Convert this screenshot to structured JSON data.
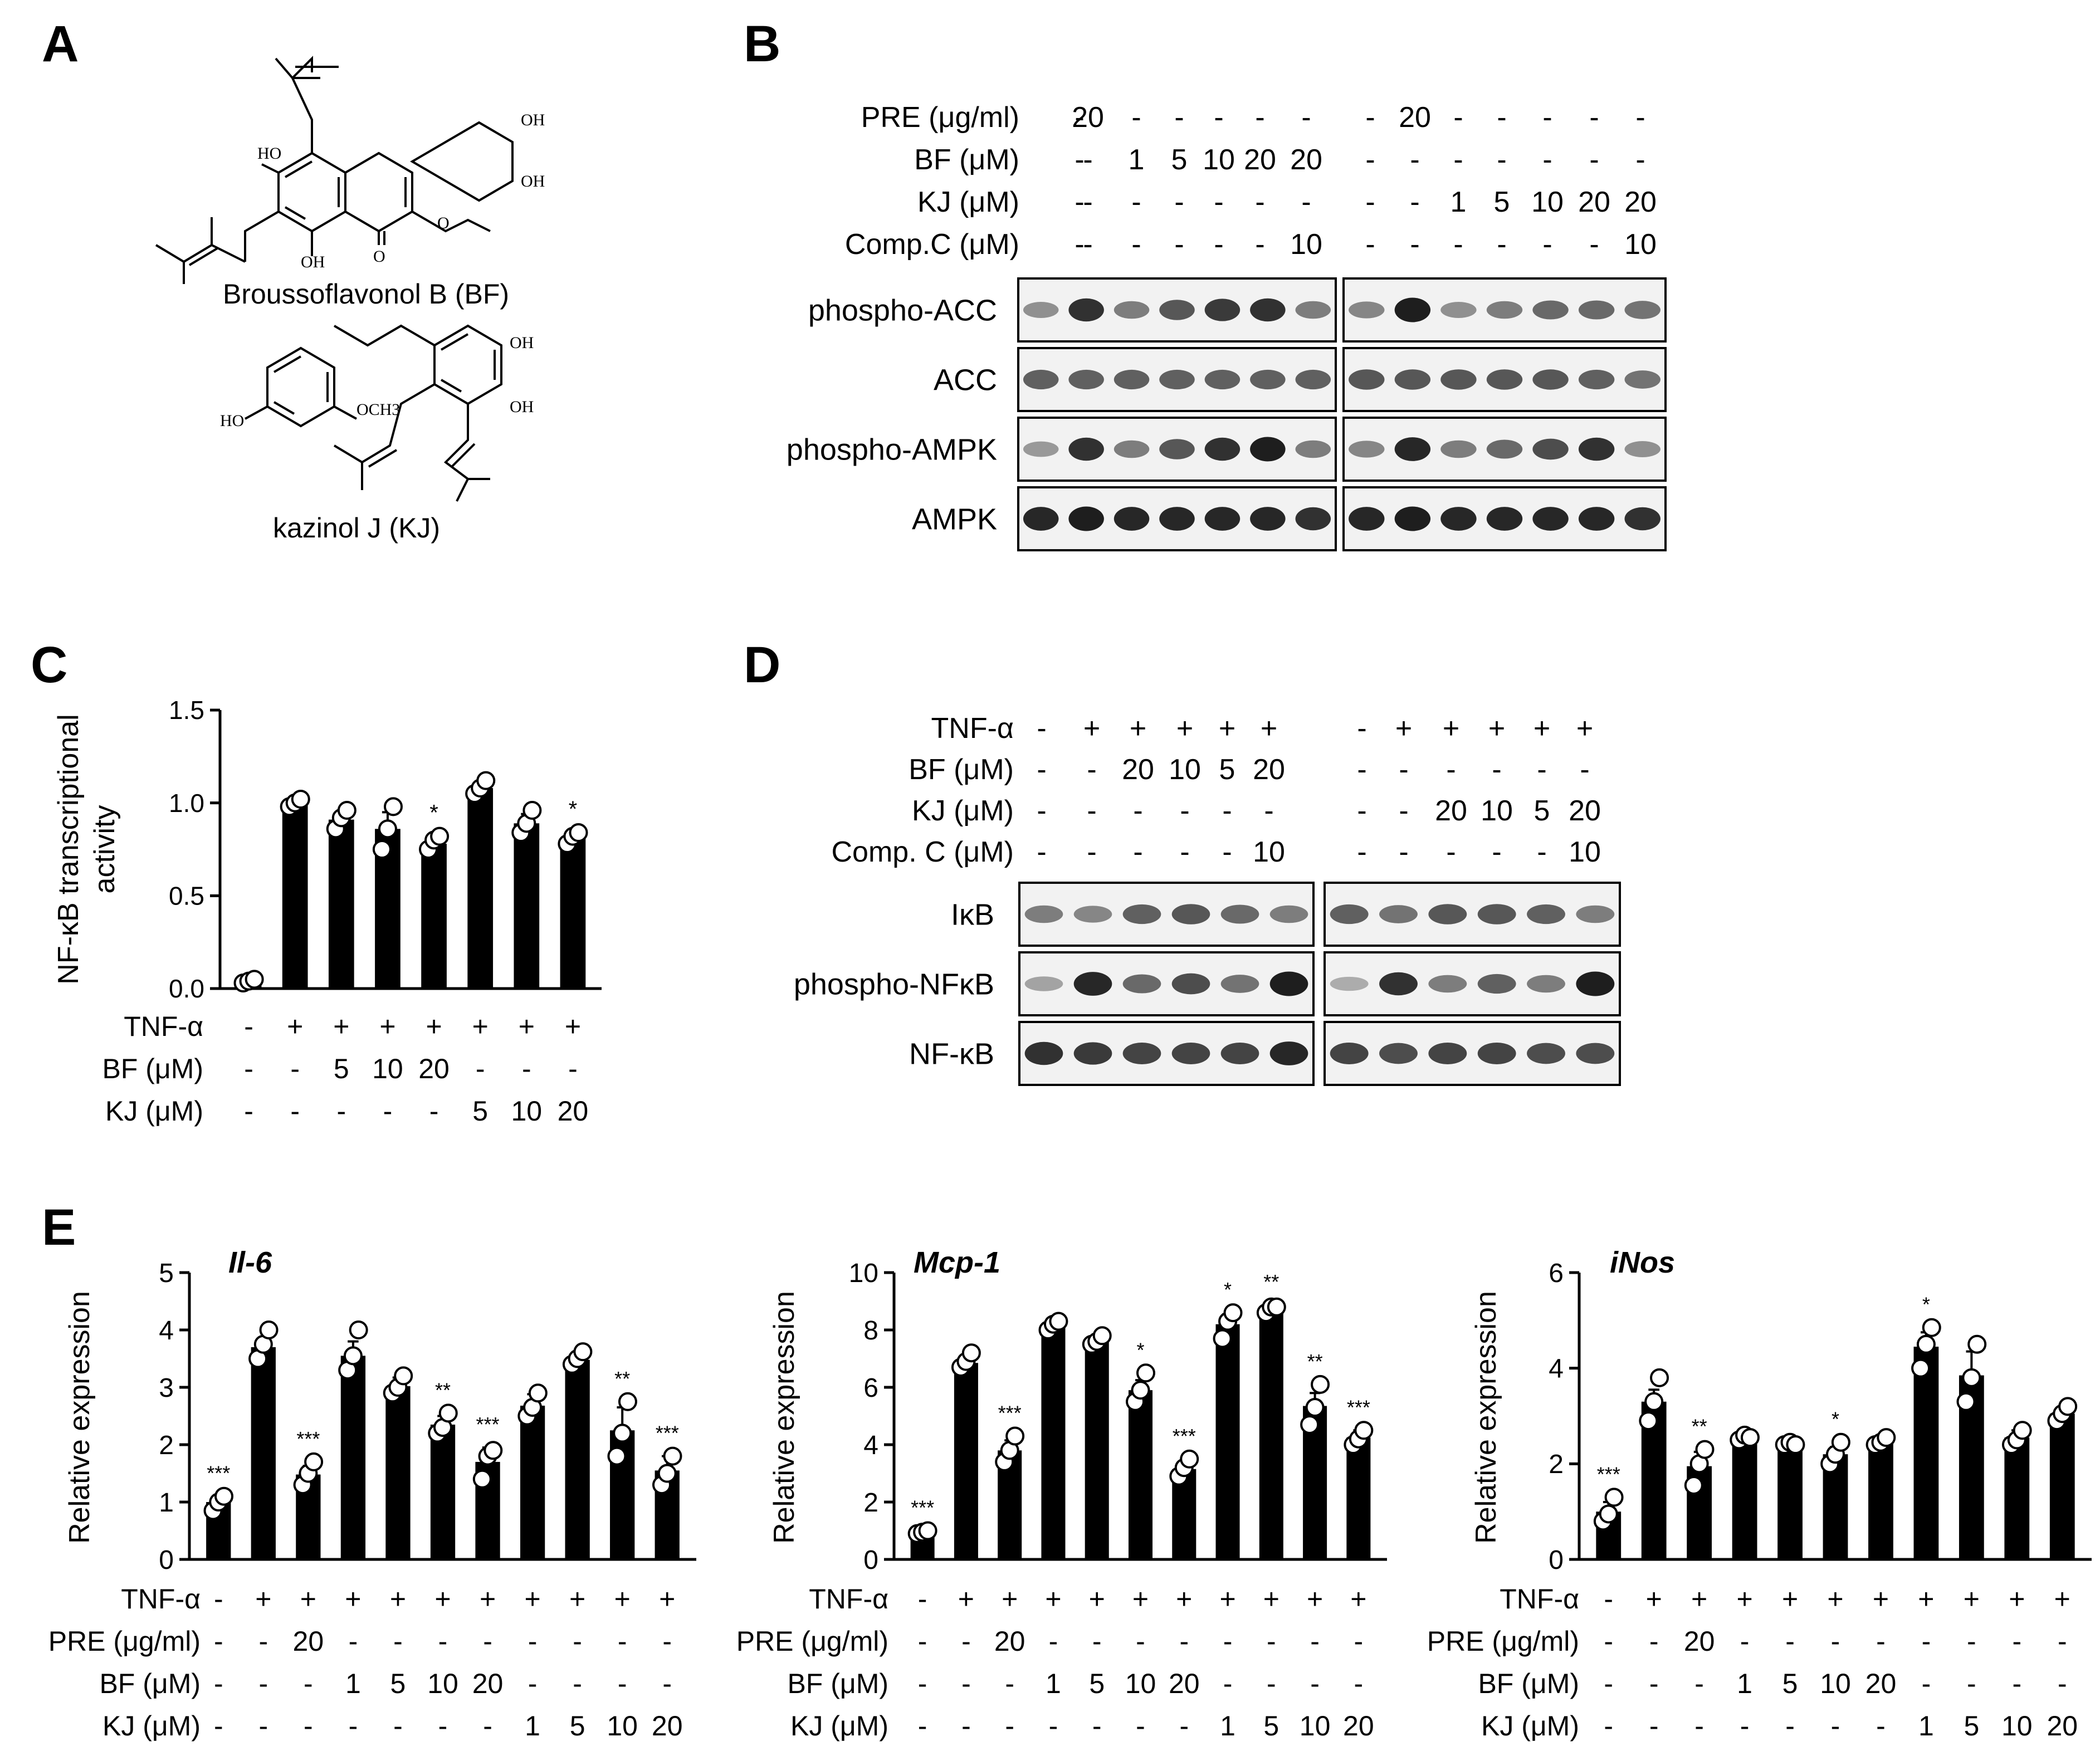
{
  "panels": {
    "A": {
      "letter": "A",
      "compound1": {
        "name": "Broussoflavonol B (BF)",
        "labels": [
          "HO",
          "OH",
          "OH",
          "OH",
          "O"
        ],
        "ome": "O"
      },
      "compound2": {
        "name": "kazinol J (KJ)",
        "labels": [
          "OH",
          "OH",
          "HO",
          "OCH3"
        ]
      }
    },
    "B": {
      "letter": "B",
      "treatments": [
        {
          "label": "PRE (μg/ml)",
          "values": [
            "-",
            "20",
            "-",
            "-",
            "-",
            "-",
            "-",
            "-",
            "20",
            "-",
            "-",
            "-",
            "-",
            "-"
          ]
        },
        {
          "label": "BF (μM)",
          "values": [
            "-",
            "-",
            "1",
            "5",
            "10",
            "20",
            "20",
            "-",
            "-",
            "-",
            "-",
            "-",
            "-",
            "-"
          ]
        },
        {
          "label": "KJ (μM)",
          "values": [
            "-",
            "-",
            "-",
            "-",
            "-",
            "-",
            "-",
            "-",
            "-",
            "1",
            "5",
            "10",
            "20",
            "20"
          ]
        },
        {
          "label": "Comp.C (μM)",
          "values": [
            "-",
            "-",
            "-",
            "-",
            "-",
            "-",
            "10",
            "-",
            "-",
            "-",
            "-",
            "-",
            "-",
            "10"
          ]
        }
      ],
      "blots": [
        "phospho-ACC",
        "ACC",
        "phospho-AMPK",
        "AMPK"
      ]
    },
    "C": {
      "letter": "C",
      "treatments": [
        {
          "label": "TNF-α",
          "values": [
            "-",
            "+",
            "+",
            "+",
            "+",
            "+",
            "+",
            "+"
          ]
        },
        {
          "label": "BF (μM)",
          "values": [
            "-",
            "-",
            "5",
            "10",
            "20",
            "-",
            "-",
            "-"
          ]
        },
        {
          "label": "KJ (μM)",
          "values": [
            "-",
            "-",
            "-",
            "-",
            "-",
            "5",
            "10",
            "20"
          ]
        }
      ]
    },
    "D": {
      "letter": "D",
      "treatments": [
        {
          "label": "TNF-α",
          "values": [
            "-",
            "+",
            "+",
            "+",
            "+",
            "+",
            "-",
            "+",
            "+",
            "+",
            "+",
            "+"
          ]
        },
        {
          "label": "BF (μM)",
          "values": [
            "-",
            "-",
            "20",
            "10",
            "5",
            "20",
            "-",
            "-",
            "-",
            "-",
            "-",
            "-"
          ]
        },
        {
          "label": "KJ (μM)",
          "values": [
            "-",
            "-",
            "-",
            "-",
            "-",
            "-",
            "-",
            "-",
            "20",
            "10",
            "5",
            "20"
          ]
        },
        {
          "label": "Comp. C (μM)",
          "values": [
            "-",
            "-",
            "-",
            "-",
            "-",
            "10",
            "-",
            "-",
            "-",
            "-",
            "-",
            "10"
          ]
        }
      ],
      "blots": [
        "IκB",
        "phospho-NFκB",
        "NF-κB"
      ]
    },
    "E": {
      "letter": "E",
      "treatments": [
        {
          "label": "TNF-α",
          "values": [
            "-",
            "+",
            "+",
            "+",
            "+",
            "+",
            "+",
            "+",
            "+",
            "+",
            "+"
          ]
        },
        {
          "label": "PRE (μg/ml)",
          "values": [
            "-",
            "-",
            "20",
            "-",
            "-",
            "-",
            "-",
            "-",
            "-",
            "-",
            "-"
          ]
        },
        {
          "label": "BF (μM)",
          "values": [
            "-",
            "-",
            "-",
            "1",
            "5",
            "10",
            "20",
            "-",
            "-",
            "-",
            "-"
          ]
        },
        {
          "label": "KJ (μM)",
          "values": [
            "-",
            "-",
            "-",
            "-",
            "-",
            "-",
            "-",
            "1",
            "5",
            "10",
            "20"
          ]
        }
      ]
    }
  },
  "chart_data": [
    {
      "id": "C",
      "type": "bar",
      "ylabel_line1": "NF-κB transcriptional",
      "ylabel_line2": "activity",
      "ylim": [
        0,
        1.5
      ],
      "yticks": [
        "0.0",
        "0.5",
        "1.0",
        "1.5"
      ],
      "values": [
        0.04,
        1.0,
        0.91,
        0.86,
        0.78,
        1.08,
        0.89,
        0.81
      ],
      "errors": [
        0.01,
        0.02,
        0.04,
        0.09,
        0.04,
        0.03,
        0.05,
        0.03
      ],
      "points": [
        [
          0.03,
          0.04,
          0.05
        ],
        [
          0.98,
          1.0,
          1.02
        ],
        [
          0.86,
          0.92,
          0.96
        ],
        [
          0.75,
          0.86,
          0.98
        ],
        [
          0.75,
          0.8,
          0.82
        ],
        [
          1.05,
          1.08,
          1.12
        ],
        [
          0.84,
          0.89,
          0.96
        ],
        [
          0.78,
          0.82,
          0.84
        ]
      ],
      "sig": [
        "",
        "",
        "",
        "",
        "*",
        "",
        "",
        "*"
      ]
    },
    {
      "id": "E-Il6",
      "type": "bar",
      "title": "Il-6",
      "ylabel": "Relative expression",
      "ylim": [
        0,
        5
      ],
      "yticks": [
        "0",
        "1",
        "2",
        "3",
        "4",
        "5"
      ],
      "values": [
        1.0,
        3.7,
        1.48,
        3.55,
        3.02,
        2.35,
        1.7,
        2.68,
        3.48,
        2.25,
        1.55
      ],
      "errors": [
        0.1,
        0.15,
        0.15,
        0.25,
        0.15,
        0.15,
        0.25,
        0.2,
        0.12,
        0.4,
        0.25
      ],
      "points": [
        [
          0.85,
          1.0,
          1.1
        ],
        [
          3.5,
          3.75,
          4.0
        ],
        [
          1.3,
          1.5,
          1.7
        ],
        [
          3.3,
          3.55,
          4.0
        ],
        [
          2.9,
          3.0,
          3.2
        ],
        [
          2.2,
          2.3,
          2.55
        ],
        [
          1.4,
          1.8,
          1.9
        ],
        [
          2.5,
          2.65,
          2.9
        ],
        [
          3.4,
          3.5,
          3.62
        ],
        [
          1.8,
          2.2,
          2.75
        ],
        [
          1.3,
          1.5,
          1.8
        ]
      ],
      "sig": [
        "***",
        "",
        "***",
        "",
        "",
        "**",
        "***",
        "",
        "",
        "**",
        "***"
      ]
    },
    {
      "id": "E-Mcp1",
      "type": "bar",
      "title": "Mcp-1",
      "ylabel": "Relative expression",
      "ylim": [
        0,
        10
      ],
      "yticks": [
        "0",
        "2",
        "4",
        "6",
        "8",
        "10"
      ],
      "values": [
        0.95,
        6.85,
        3.8,
        8.15,
        7.6,
        5.9,
        3.15,
        8.2,
        8.75,
        5.35,
        4.25
      ],
      "errors": [
        0.05,
        0.15,
        0.35,
        0.15,
        0.15,
        0.35,
        0.25,
        0.35,
        0.12,
        0.45,
        0.25
      ],
      "points": [
        [
          0.9,
          0.95,
          1.0
        ],
        [
          6.7,
          6.9,
          7.2
        ],
        [
          3.4,
          3.8,
          4.3
        ],
        [
          8.0,
          8.2,
          8.3
        ],
        [
          7.5,
          7.6,
          7.8
        ],
        [
          5.5,
          5.9,
          6.5
        ],
        [
          2.9,
          3.2,
          3.5
        ],
        [
          7.7,
          8.3,
          8.6
        ],
        [
          8.6,
          8.8,
          8.8
        ],
        [
          4.7,
          5.3,
          6.1
        ],
        [
          4.0,
          4.2,
          4.5
        ]
      ],
      "sig": [
        "***",
        "",
        "***",
        "",
        "",
        "*",
        "***",
        "*",
        "**",
        "**",
        "***"
      ]
    },
    {
      "id": "E-iNos",
      "type": "bar",
      "title": "iNos",
      "ylabel": "Relative expression",
      "ylim": [
        0,
        6
      ],
      "yticks": [
        "0",
        "2",
        "4",
        "6"
      ],
      "values": [
        1.0,
        3.3,
        1.95,
        2.55,
        2.42,
        2.2,
        2.45,
        4.45,
        3.85,
        2.55,
        3.05
      ],
      "errors": [
        0.2,
        0.25,
        0.3,
        0.08,
        0.05,
        0.15,
        0.08,
        0.3,
        0.5,
        0.15,
        0.12
      ],
      "points": [
        [
          0.8,
          0.95,
          1.3
        ],
        [
          2.9,
          3.3,
          3.8
        ],
        [
          1.55,
          2.0,
          2.3
        ],
        [
          2.5,
          2.6,
          2.55
        ],
        [
          2.4,
          2.45,
          2.4
        ],
        [
          2.0,
          2.2,
          2.45
        ],
        [
          2.4,
          2.45,
          2.55
        ],
        [
          4.0,
          4.5,
          4.85
        ],
        [
          3.3,
          3.8,
          4.5
        ],
        [
          2.4,
          2.5,
          2.7
        ],
        [
          2.9,
          3.05,
          3.2
        ]
      ],
      "sig": [
        "***",
        "",
        "**",
        "",
        "",
        "*",
        "",
        "*",
        "",
        "",
        ""
      ]
    }
  ]
}
